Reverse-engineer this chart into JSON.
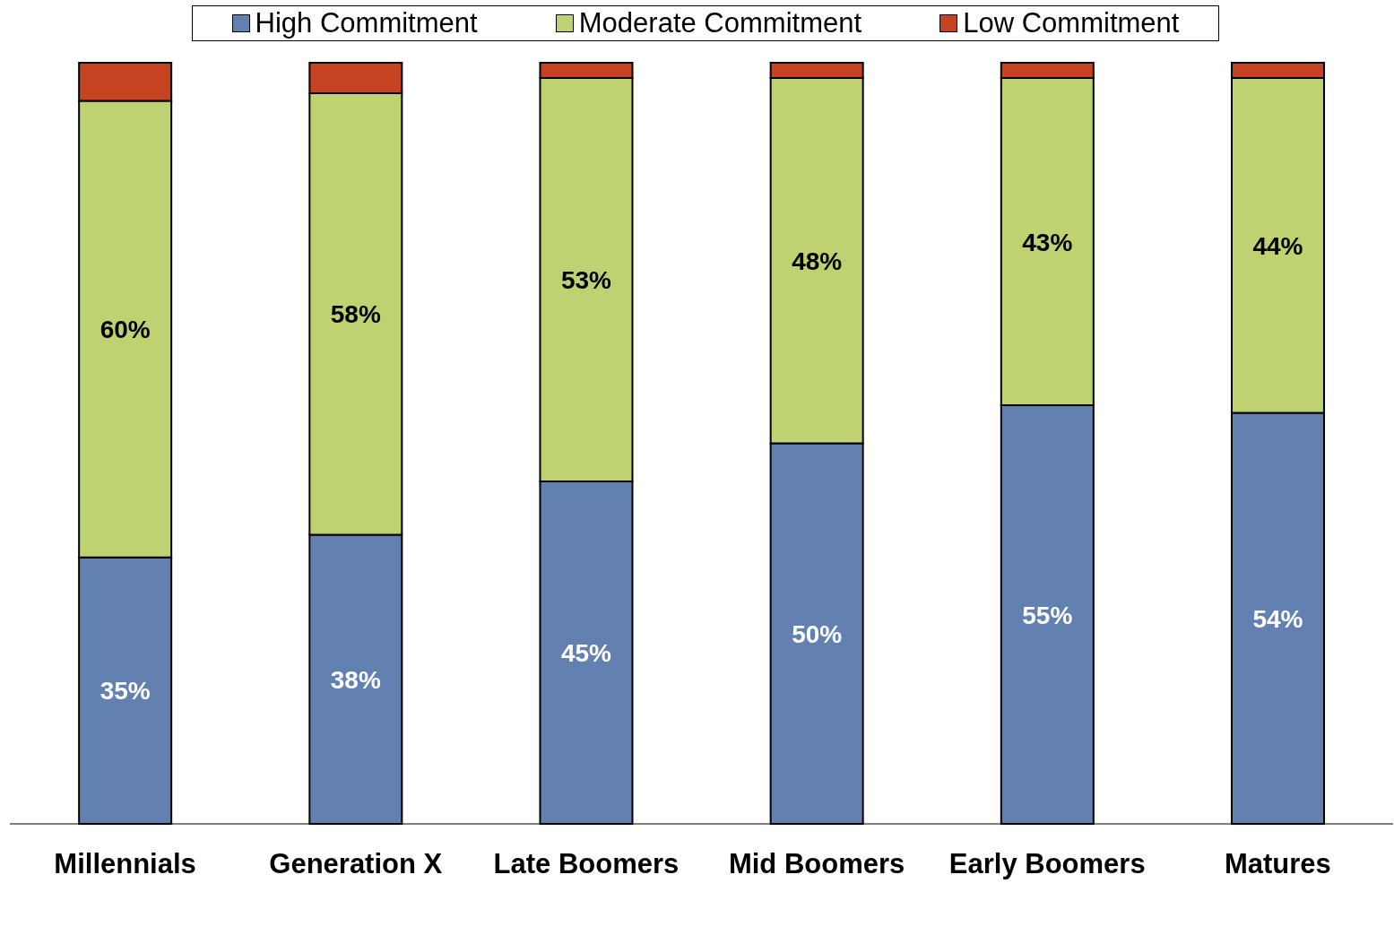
{
  "chart_data": {
    "type": "bar",
    "stacked": true,
    "legend": "top",
    "categories": [
      "Millennials",
      "Generation X",
      "Late Boomers",
      "Mid Boomers",
      "Early Boomers",
      "Matures"
    ],
    "series": [
      {
        "name": "High Commitment",
        "color": "#6280b0",
        "values": [
          35,
          38,
          45,
          50,
          55,
          54
        ],
        "value_labels": [
          "35%",
          "38%",
          "45%",
          "50%",
          "55%",
          "54%"
        ]
      },
      {
        "name": "Moderate Commitment",
        "color": "#bfd271",
        "values": [
          60,
          58,
          53,
          48,
          43,
          44
        ],
        "value_labels": [
          "60%",
          "58%",
          "53%",
          "48%",
          "43%",
          "44%"
        ]
      },
      {
        "name": "Low Commitment",
        "color": "#c64322",
        "values": [
          5,
          4,
          2,
          2,
          2,
          2
        ]
      }
    ]
  }
}
